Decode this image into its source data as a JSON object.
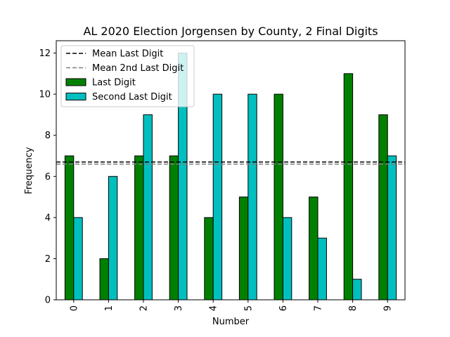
{
  "chart_data": {
    "type": "bar",
    "title": "AL 2020 Election Jorgensen by County, 2 Final Digits",
    "xlabel": "Number",
    "ylabel": "Frequency",
    "categories": [
      "0",
      "1",
      "2",
      "3",
      "4",
      "5",
      "6",
      "7",
      "8",
      "9"
    ],
    "ylim": [
      0,
      12.6
    ],
    "yticks": [
      "0",
      "2",
      "4",
      "6",
      "8",
      "10",
      "12"
    ],
    "series": [
      {
        "name": "Last Digit",
        "color": "#008000",
        "values": [
          7,
          2,
          7,
          7,
          4,
          5,
          10,
          5,
          11,
          9
        ]
      },
      {
        "name": "Second Last Digit",
        "color": "#00bfbf",
        "values": [
          4,
          6,
          9,
          12,
          10,
          10,
          4,
          3,
          1,
          7
        ]
      }
    ],
    "reference_lines": [
      {
        "name": "Mean Last Digit",
        "value": 6.7,
        "color": "#000000",
        "style": "dashed"
      },
      {
        "name": "Mean 2nd Last Digit",
        "value": 6.6,
        "color": "#808080",
        "style": "dashed"
      }
    ],
    "legend": {
      "placement": "top-left",
      "entries": [
        "Mean Last Digit",
        "Mean 2nd Last Digit",
        "Last Digit",
        "Second Last Digit"
      ]
    },
    "grid": false
  }
}
